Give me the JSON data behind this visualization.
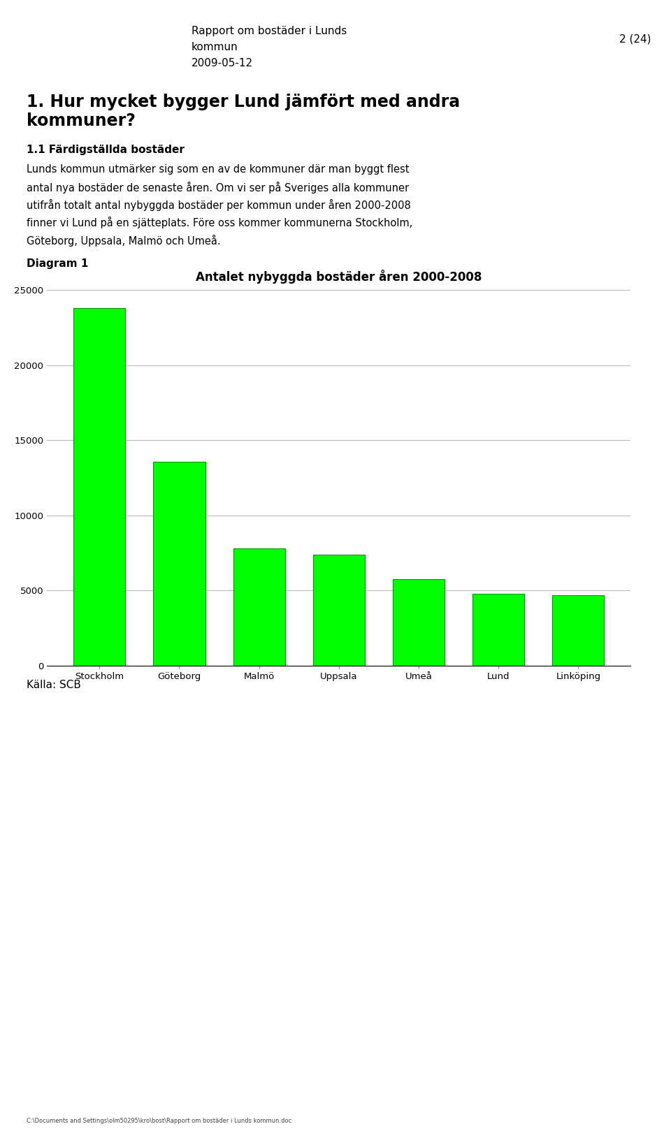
{
  "header_line1": "Rapport om bostäder i Lunds",
  "header_line2": "kommun",
  "header_line3": "2009-05-12",
  "header_right": "2 (24)",
  "section_title_line1": "1. Hur mycket bygger Lund jämfört med andra",
  "section_title_line2": "kommuner?",
  "subsection_title": "1.1 Färdigställda bostäder",
  "body_lines": [
    "Lunds kommun utmärker sig som en av de kommuner där man byggt flest",
    "antal nya bostäder de senaste åren. Om vi ser på Sveriges alla kommuner",
    "utifrån totalt antal nybyggda bostäder per kommun under åren 2000-2008",
    "finner vi Lund på en sjätteplats. Före oss kommer kommunerna Stockholm,",
    "Göteborg, Uppsala, Malmö och Umeå."
  ],
  "diagram_label": "Diagram 1",
  "chart_title": "Antalet nybyggda bostäder åren 2000-2008",
  "categories": [
    "Stockholm",
    "Göteborg",
    "Malmö",
    "Uppsala",
    "Umeå",
    "Lund",
    "Linköping"
  ],
  "values": [
    23800,
    13600,
    7800,
    7400,
    5750,
    4800,
    4700
  ],
  "bar_color": "#00ff00",
  "bar_edge_color": "#009900",
  "ylim": [
    0,
    25000
  ],
  "yticks": [
    0,
    5000,
    10000,
    15000,
    20000,
    25000
  ],
  "source_text": "Källa: SCB",
  "footer_text": "C:\\Documents and Settings\\olm50295\\kro\\bost\\Rapport om bostäder i Lunds kommun.doc",
  "background_color": "#ffffff",
  "grid_color": "#bbbbbb"
}
